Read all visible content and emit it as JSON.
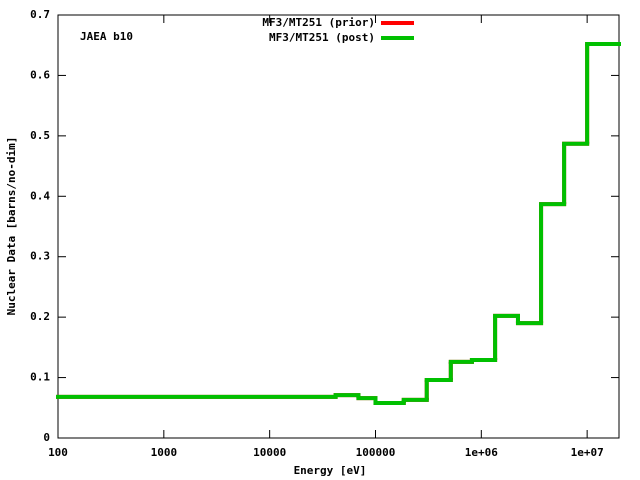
{
  "chart_data": {
    "type": "histogram",
    "ylabel": "Nuclear Data [barns/no-dim]",
    "xlabel": "Energy [eV]",
    "annotation": "JAEA b10",
    "log_x": true,
    "bins": [
      100,
      42000,
      69000,
      100000,
      185000,
      305000,
      515000,
      815000,
      1350000,
      2220000,
      3670000,
      6060000,
      10000000,
      20000000
    ],
    "series": [
      {
        "name": "MF3/MT251 (prior)",
        "color": "#ff0000",
        "values": [
          0.068,
          0.071,
          0.066,
          0.058,
          0.063,
          0.096,
          0.126,
          0.129,
          0.202,
          0.19,
          0.387,
          0.487,
          0.652
        ]
      },
      {
        "name": "MF3/MT251 (post)",
        "color": "#00c000",
        "values": [
          0.068,
          0.071,
          0.066,
          0.058,
          0.063,
          0.096,
          0.126,
          0.129,
          0.202,
          0.19,
          0.387,
          0.487,
          0.652
        ]
      }
    ],
    "xlim": [
      100,
      20000000
    ],
    "xticks": [
      100,
      1000,
      10000,
      100000,
      {
        "value": 1000000,
        "label": "1e+06"
      },
      {
        "value": 10000000,
        "label": "1e+07"
      }
    ],
    "ylim": [
      0,
      0.7
    ],
    "yticks": [
      0,
      0.1,
      0.2,
      0.3,
      0.4,
      0.5,
      0.6,
      0.7
    ],
    "legend": "top"
  }
}
